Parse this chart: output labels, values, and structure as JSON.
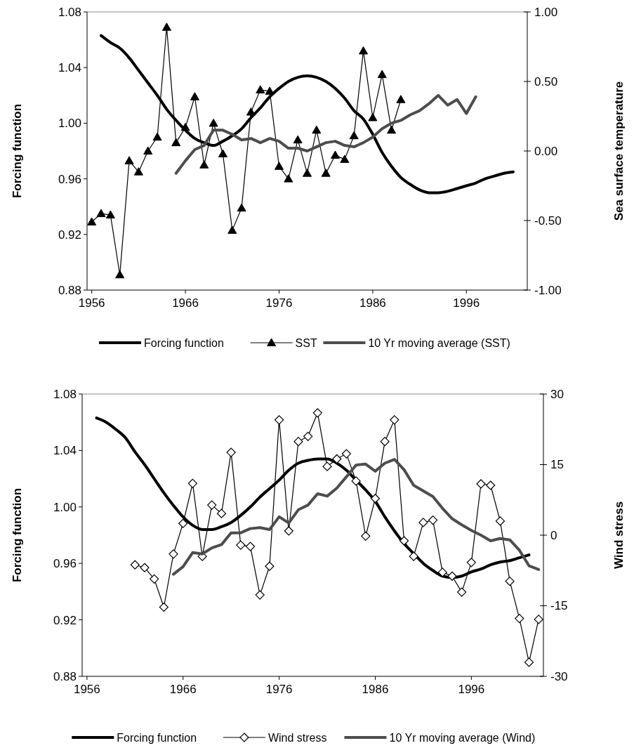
{
  "chart_data": [
    {
      "type": "line",
      "ylabel": "Forcing function",
      "y2label": "Sea surface temperature",
      "xlim": [
        1955.5,
        2002.5
      ],
      "xticks": [
        1956,
        1966,
        1976,
        1986,
        1996
      ],
      "ylim": [
        0.88,
        1.08
      ],
      "yticks": [
        0.88,
        0.92,
        0.96,
        {
          "value": 1,
          "label": "1.00"
        },
        1.04,
        1.08
      ],
      "y2lim": [
        -1,
        1
      ],
      "y2ticks": [
        {
          "value": -1,
          "label": "-1.00"
        },
        {
          "value": -0.5,
          "label": "-0.50"
        },
        {
          "value": 0,
          "label": "0.00"
        },
        {
          "value": 0.5,
          "label": "0.50"
        },
        {
          "value": 1,
          "label": "1.00"
        }
      ],
      "legend": "bottom",
      "series": [
        {
          "name": "Forcing function",
          "color": "#000000",
          "marker": "none",
          "x": [
            1957,
            1958,
            1959,
            1960,
            1961,
            1962,
            1963,
            1964,
            1965,
            1966,
            1967,
            1968,
            1969,
            1970,
            1971,
            1972,
            1973,
            1974,
            1975,
            1976,
            1977,
            1978,
            1979,
            1980,
            1981,
            1982,
            1983,
            1984,
            1985,
            1986,
            1987,
            1988,
            1989,
            1990,
            1991,
            1992,
            1993,
            1994,
            1995,
            1996,
            1997,
            1998,
            1999,
            2000,
            2001
          ],
          "values": [
            1.063,
            1.058,
            1.054,
            1.047,
            1.038,
            1.029,
            1.02,
            1.01,
            1.002,
            0.995,
            0.989,
            0.986,
            0.984,
            0.987,
            0.991,
            0.996,
            1.004,
            1.011,
            1.019,
            1.025,
            1.03,
            1.033,
            1.034,
            1.033,
            1.03,
            1.025,
            1.018,
            1.009,
            1.003,
            0.992,
            0.979,
            0.969,
            0.961,
            0.956,
            0.952,
            0.95,
            0.95,
            0.951,
            0.953,
            0.955,
            0.957,
            0.96,
            0.962,
            0.964,
            0.965
          ]
        },
        {
          "name": "SST",
          "color": "#000000",
          "marker": "triangle",
          "axis": "y2",
          "x": [
            1956,
            1957,
            1958,
            1959,
            1960,
            1961,
            1962,
            1963,
            1964,
            1965,
            1966,
            1967,
            1968,
            1969,
            1970,
            1971,
            1972,
            1973,
            1974,
            1975,
            1976,
            1977,
            1978,
            1979,
            1980,
            1981,
            1982,
            1983,
            1984,
            1985,
            1986,
            1987,
            1988,
            1989
          ],
          "values": [
            -0.51,
            -0.45,
            -0.46,
            -0.89,
            -0.07,
            -0.15,
            0.0,
            0.1,
            0.89,
            0.06,
            0.17,
            0.39,
            -0.1,
            0.2,
            -0.02,
            -0.57,
            -0.41,
            0.28,
            0.44,
            0.43,
            -0.11,
            -0.2,
            0.08,
            -0.16,
            0.15,
            -0.16,
            -0.03,
            -0.06,
            0.11,
            0.72,
            0.24,
            0.55,
            0.15,
            0.37
          ]
        },
        {
          "name": "10 Yr moving average (SST)",
          "color": "#4d4d4d",
          "marker": "none",
          "axis": "y2",
          "x": [
            1965,
            1966,
            1967,
            1968,
            1969,
            1970,
            1971,
            1972,
            1973,
            1974,
            1975,
            1976,
            1977,
            1978,
            1979,
            1980,
            1981,
            1982,
            1983,
            1984,
            1985,
            1986,
            1987,
            1988,
            1989,
            1990,
            1991,
            1992,
            1993,
            1994,
            1995,
            1996,
            1997
          ],
          "values": [
            -0.16,
            -0.07,
            0.01,
            0.04,
            0.15,
            0.15,
            0.12,
            0.08,
            0.09,
            0.06,
            0.09,
            0.07,
            0.02,
            0.02,
            0.0,
            0.03,
            0.06,
            0.07,
            0.04,
            0.03,
            0.06,
            0.1,
            0.16,
            0.2,
            0.22,
            0.26,
            0.29,
            0.34,
            0.4,
            0.33,
            0.37,
            0.27,
            0.39
          ]
        }
      ]
    },
    {
      "type": "line",
      "ylabel": "Forcing function",
      "y2label": "Wind stress",
      "xlim": [
        1955.5,
        2003.5
      ],
      "xticks": [
        1956,
        1966,
        1976,
        1986,
        1996
      ],
      "ylim": [
        0.88,
        1.08
      ],
      "yticks": [
        0.88,
        0.92,
        0.96,
        {
          "value": 1,
          "label": "1.00"
        },
        1.04,
        1.08
      ],
      "y2lim": [
        -30,
        30
      ],
      "y2ticks": [
        -30,
        -15,
        0,
        15,
        30
      ],
      "legend": "bottom",
      "series": [
        {
          "name": "Forcing function",
          "color": "#000000",
          "marker": "none",
          "x": [
            1957,
            1958,
            1959,
            1960,
            1961,
            1962,
            1963,
            1964,
            1965,
            1966,
            1967,
            1968,
            1969,
            1970,
            1971,
            1972,
            1973,
            1974,
            1975,
            1976,
            1977,
            1978,
            1979,
            1980,
            1981,
            1982,
            1983,
            1984,
            1985,
            1986,
            1987,
            1988,
            1989,
            1990,
            1991,
            1992,
            1993,
            1994,
            1995,
            1996,
            1997,
            1998,
            1999,
            2000,
            2001,
            2002
          ],
          "values": [
            1.063,
            1.06,
            1.055,
            1.049,
            1.039,
            1.03,
            1.02,
            1.01,
            1.001,
            0.993,
            0.987,
            0.984,
            0.984,
            0.986,
            0.989,
            0.994,
            1.0,
            1.007,
            1.013,
            1.019,
            1.026,
            1.031,
            1.033,
            1.034,
            1.034,
            1.031,
            1.026,
            1.019,
            1.012,
            1.004,
            0.993,
            0.983,
            0.974,
            0.967,
            0.96,
            0.955,
            0.951,
            0.95,
            0.951,
            0.954,
            0.956,
            0.959,
            0.961,
            0.962,
            0.964,
            0.966
          ]
        },
        {
          "name": "Wind stress",
          "color": "#000000",
          "marker": "diamond",
          "axis": "y2",
          "x": [
            1961,
            1962,
            1963,
            1964,
            1965,
            1966,
            1967,
            1968,
            1969,
            1970,
            1971,
            1972,
            1973,
            1974,
            1975,
            1976,
            1977,
            1978,
            1979,
            1980,
            1981,
            1982,
            1983,
            1984,
            1985,
            1986,
            1987,
            1988,
            1989,
            1990,
            1991,
            1992,
            1993,
            1994,
            1995,
            1996,
            1997,
            1998,
            1999,
            2000,
            2001,
            2002,
            2003
          ],
          "values": [
            -6.3,
            -6.9,
            -9.3,
            -15.3,
            -4.0,
            2.5,
            11.0,
            -4.5,
            6.4,
            4.6,
            17.6,
            -2.1,
            -2.4,
            -12.7,
            -6.6,
            24.5,
            0.9,
            19.9,
            21.0,
            26.0,
            14.6,
            16.2,
            17.3,
            11.5,
            -0.2,
            7.8,
            19.9,
            24.5,
            -1.2,
            -4.5,
            2.7,
            3.2,
            -7.9,
            -8.7,
            -12.1,
            -5.8,
            10.9,
            10.6,
            3.0,
            -9.8,
            -17.7,
            -27,
            -17.9
          ]
        },
        {
          "name": "10 Yr moving average (Wind)",
          "color": "#4d4d4d",
          "marker": "none",
          "axis": "y2",
          "x": [
            1965,
            1966,
            1967,
            1968,
            1969,
            1970,
            1971,
            1972,
            1973,
            1974,
            1975,
            1976,
            1977,
            1978,
            1979,
            1980,
            1981,
            1982,
            1983,
            1984,
            1985,
            1986,
            1987,
            1988,
            1989,
            1990,
            1991,
            1992,
            1993,
            1994,
            1995,
            1996,
            1997,
            1998,
            1999,
            2000,
            2001,
            2002,
            2003
          ],
          "values": [
            -8.3,
            -6.7,
            -3.7,
            -4.0,
            -2.7,
            -2.0,
            0.5,
            0.5,
            1.4,
            1.6,
            1.2,
            3.9,
            2.6,
            5.4,
            6.4,
            8.8,
            8.3,
            10.0,
            12.4,
            14.9,
            15.1,
            13.6,
            15.3,
            16.1,
            13.9,
            10.6,
            9.4,
            8.2,
            5.7,
            3.5,
            2.2,
            1.0,
            0.0,
            -1.2,
            -0.7,
            -1.0,
            -3.2,
            -6.5,
            -7.3
          ]
        }
      ]
    }
  ]
}
